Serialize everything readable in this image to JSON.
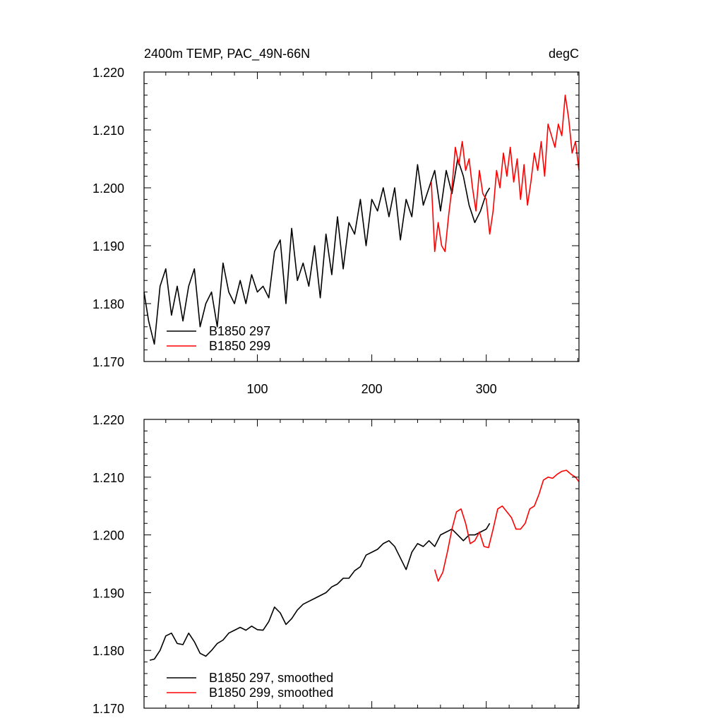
{
  "chart_data": [
    {
      "type": "line",
      "title": "2400m TEMP, PAC_49N-66N",
      "units": "degC",
      "xlim": [
        1,
        381
      ],
      "ylim": [
        1.17,
        1.22
      ],
      "x_ticks": [
        100,
        200,
        300
      ],
      "x_tick_labels": [
        "100",
        "200",
        "300"
      ],
      "y_ticks": [
        1.17,
        1.18,
        1.19,
        1.2,
        1.21,
        1.22
      ],
      "y_tick_labels": [
        "1.170",
        "1.180",
        "1.190",
        "1.200",
        "1.210",
        "1.220"
      ],
      "legend": {
        "position": "bottom-left",
        "entries": [
          "B1850 297",
          "B1850 299"
        ]
      },
      "series": [
        {
          "name": "B1850 297",
          "color": "#000000",
          "x": [
            1,
            5,
            10,
            15,
            20,
            25,
            30,
            35,
            40,
            45,
            50,
            55,
            60,
            65,
            70,
            75,
            80,
            85,
            90,
            95,
            100,
            105,
            110,
            115,
            120,
            125,
            130,
            135,
            140,
            145,
            150,
            155,
            160,
            165,
            170,
            175,
            180,
            185,
            190,
            195,
            200,
            205,
            210,
            215,
            220,
            225,
            230,
            235,
            240,
            245,
            250,
            255,
            260,
            265,
            270,
            275,
            280,
            285,
            290,
            295,
            300,
            303
          ],
          "values": [
            1.182,
            1.177,
            1.173,
            1.183,
            1.186,
            1.178,
            1.183,
            1.177,
            1.183,
            1.186,
            1.176,
            1.18,
            1.182,
            1.176,
            1.187,
            1.182,
            1.18,
            1.184,
            1.18,
            1.185,
            1.182,
            1.183,
            1.181,
            1.189,
            1.191,
            1.18,
            1.193,
            1.184,
            1.187,
            1.183,
            1.19,
            1.181,
            1.192,
            1.185,
            1.195,
            1.186,
            1.194,
            1.192,
            1.198,
            1.19,
            1.198,
            1.196,
            1.2,
            1.195,
            1.2,
            1.191,
            1.198,
            1.195,
            1.204,
            1.197,
            1.2,
            1.203,
            1.196,
            1.203,
            1.199,
            1.205,
            1.202,
            1.197,
            1.194,
            1.196,
            1.199,
            1.2
          ]
        },
        {
          "name": "B1850 299",
          "color": "#ff0000",
          "x": [
            252,
            255,
            258,
            261,
            264,
            267,
            270,
            273,
            276,
            279,
            282,
            285,
            288,
            291,
            294,
            297,
            300,
            303,
            306,
            309,
            312,
            315,
            318,
            321,
            324,
            327,
            330,
            333,
            336,
            339,
            342,
            345,
            348,
            351,
            354,
            357,
            360,
            363,
            366,
            369,
            372,
            375,
            378,
            381
          ],
          "values": [
            1.201,
            1.189,
            1.194,
            1.19,
            1.189,
            1.195,
            1.2,
            1.207,
            1.204,
            1.208,
            1.203,
            1.205,
            1.2,
            1.196,
            1.203,
            1.199,
            1.198,
            1.192,
            1.196,
            1.203,
            1.2,
            1.206,
            1.202,
            1.207,
            1.201,
            1.205,
            1.198,
            1.204,
            1.197,
            1.201,
            1.206,
            1.203,
            1.208,
            1.202,
            1.211,
            1.209,
            1.207,
            1.211,
            1.209,
            1.216,
            1.212,
            1.206,
            1.208,
            1.203
          ]
        }
      ]
    },
    {
      "type": "line",
      "xlim": [
        1,
        381
      ],
      "ylim": [
        1.17,
        1.22
      ],
      "x_ticks": [
        100,
        200,
        300
      ],
      "y_ticks": [
        1.17,
        1.18,
        1.19,
        1.2,
        1.21,
        1.22
      ],
      "y_tick_labels": [
        "1.170",
        "1.180",
        "1.190",
        "1.200",
        "1.210",
        "1.220"
      ],
      "legend": {
        "position": "bottom-left",
        "entries": [
          "B1850 297, smoothed",
          "B1850 299, smoothed"
        ]
      },
      "series": [
        {
          "name": "B1850 297, smoothed",
          "color": "#000000",
          "x": [
            6,
            10,
            15,
            20,
            25,
            30,
            35,
            40,
            45,
            50,
            55,
            60,
            65,
            70,
            75,
            80,
            85,
            90,
            95,
            100,
            105,
            110,
            115,
            120,
            125,
            130,
            135,
            140,
            145,
            150,
            155,
            160,
            165,
            170,
            175,
            180,
            185,
            190,
            195,
            200,
            205,
            210,
            215,
            220,
            225,
            230,
            235,
            240,
            245,
            250,
            255,
            260,
            265,
            270,
            275,
            280,
            285,
            290,
            295,
            300,
            303
          ],
          "values": [
            1.1783,
            1.1785,
            1.18,
            1.1825,
            1.183,
            1.1812,
            1.181,
            1.183,
            1.1815,
            1.1795,
            1.179,
            1.18,
            1.1812,
            1.1818,
            1.183,
            1.1835,
            1.184,
            1.1835,
            1.1842,
            1.1836,
            1.1835,
            1.185,
            1.1875,
            1.1865,
            1.1845,
            1.1855,
            1.187,
            1.188,
            1.1885,
            1.189,
            1.1895,
            1.19,
            1.191,
            1.1915,
            1.1925,
            1.1925,
            1.1938,
            1.1945,
            1.1965,
            1.197,
            1.1975,
            1.1985,
            1.199,
            1.198,
            1.196,
            1.194,
            1.197,
            1.1985,
            1.198,
            1.199,
            1.198,
            1.2,
            1.2005,
            1.201,
            1.2,
            1.199,
            1.2,
            1.2,
            1.2005,
            1.201,
            1.202
          ]
        },
        {
          "name": "B1850 299, smoothed",
          "color": "#ff0000",
          "x": [
            255,
            258,
            262,
            266,
            270,
            274,
            278,
            282,
            286,
            290,
            294,
            298,
            302,
            306,
            310,
            314,
            318,
            322,
            326,
            330,
            334,
            338,
            342,
            346,
            350,
            354,
            358,
            362,
            366,
            370,
            374,
            378,
            381
          ],
          "values": [
            1.194,
            1.192,
            1.1935,
            1.197,
            1.201,
            1.204,
            1.2045,
            1.202,
            1.1985,
            1.199,
            1.2005,
            1.198,
            1.1978,
            1.201,
            1.2045,
            1.205,
            1.204,
            1.203,
            1.201,
            1.201,
            1.202,
            1.2045,
            1.205,
            1.207,
            1.2095,
            1.21,
            1.2098,
            1.2105,
            1.211,
            1.2112,
            1.2105,
            1.21,
            1.2092
          ]
        }
      ]
    }
  ]
}
